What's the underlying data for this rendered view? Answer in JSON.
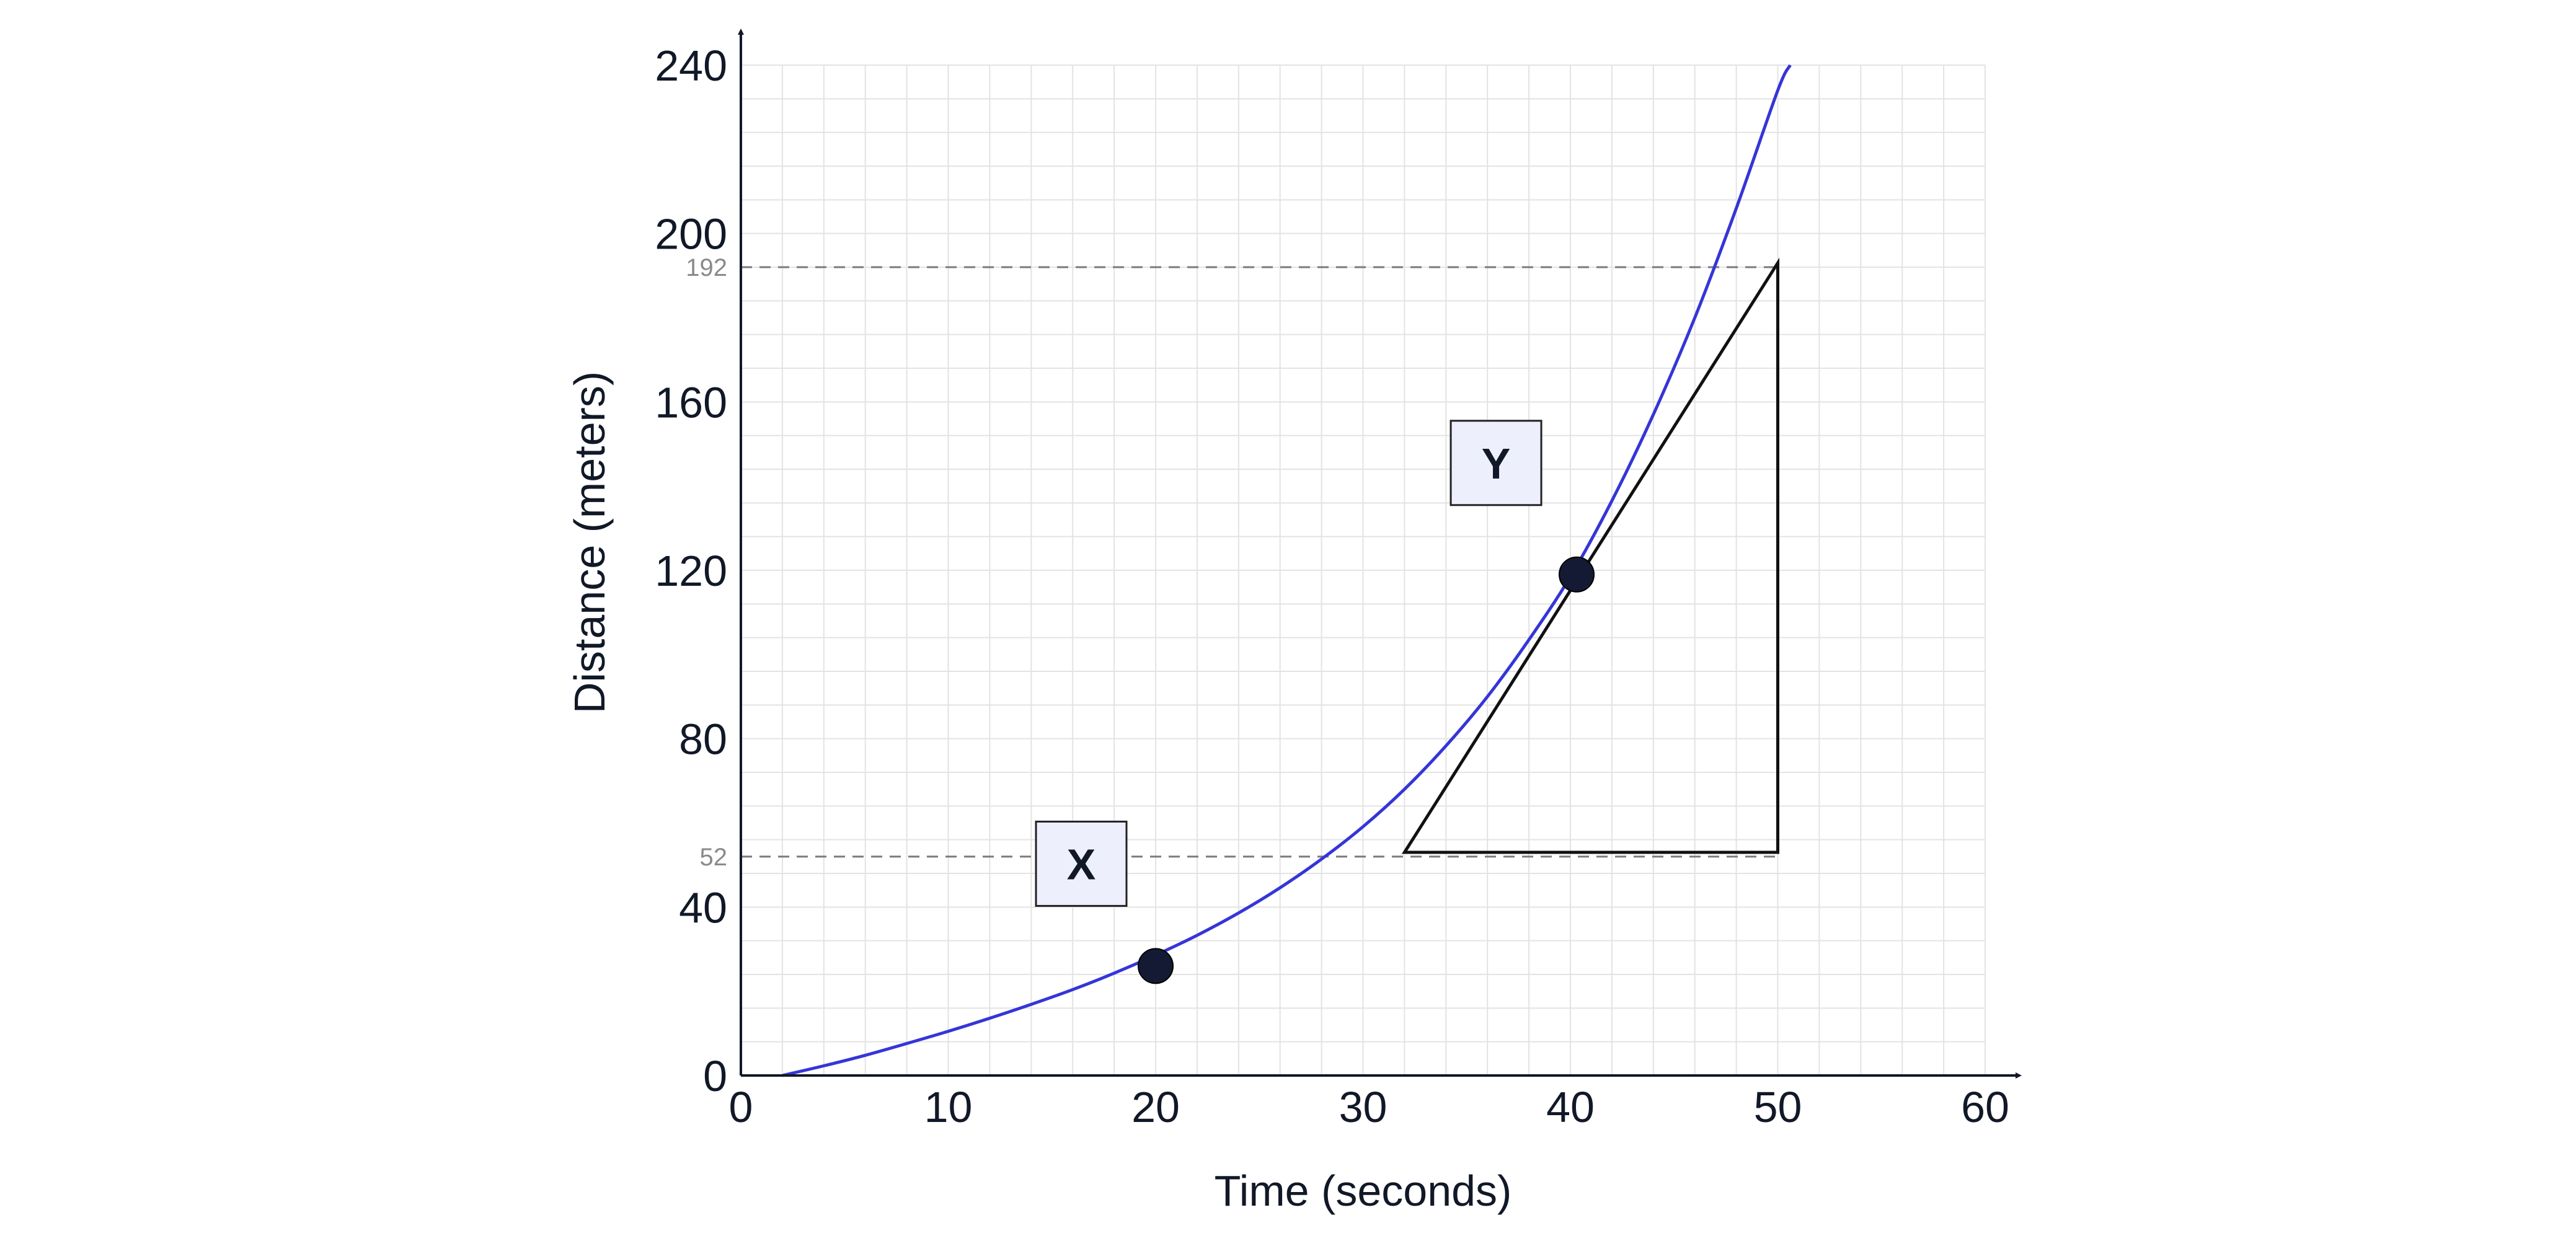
{
  "chart_data": {
    "type": "line",
    "title": "",
    "xlabel": "Time (seconds)",
    "ylabel": "Distance (meters)",
    "xlim": [
      0,
      60
    ],
    "ylim": [
      0,
      240
    ],
    "x_ticks": [
      0,
      10,
      20,
      30,
      40,
      50,
      60
    ],
    "y_ticks": [
      0,
      40,
      80,
      120,
      160,
      200,
      240
    ],
    "grid": true,
    "minor_grid_step": {
      "x": 2,
      "y": 8
    },
    "colors": {
      "curve": "#3535d8",
      "grid": "#e3e3e3",
      "axis": "#111827",
      "reference": "#7a7a7a",
      "point": "#141a33",
      "label_box_fill": "#eeeffc"
    },
    "series": [
      {
        "x": [
          2,
          4,
          6,
          8,
          10,
          12,
          14,
          16,
          18,
          20,
          22,
          24,
          26,
          28,
          30,
          32,
          34,
          36,
          38,
          40,
          42,
          44,
          46,
          48,
          50,
          50.6
        ],
        "y": [
          0,
          2.3,
          4.8,
          7.6,
          10.5,
          13.6,
          16.9,
          20.4,
          24.3,
          28.6,
          33.3,
          38.6,
          44.6,
          51.4,
          59.1,
          68.0,
          78.3,
          90.0,
          103.5,
          118.5,
          136.5,
          157.0,
          180.0,
          206.0,
          234.0,
          240.0
        ]
      }
    ],
    "points": [
      {
        "label": "X",
        "x": 20,
        "y": 26
      },
      {
        "label": "Y",
        "x": 40.3,
        "y": 119
      }
    ],
    "tangent_triangle": {
      "vertices": [
        [
          32,
          53
        ],
        [
          50,
          53
        ],
        [
          50,
          193
        ]
      ]
    },
    "reference_lines": [
      {
        "y": 192,
        "label": "192"
      },
      {
        "y": 52,
        "label": "52"
      }
    ]
  }
}
